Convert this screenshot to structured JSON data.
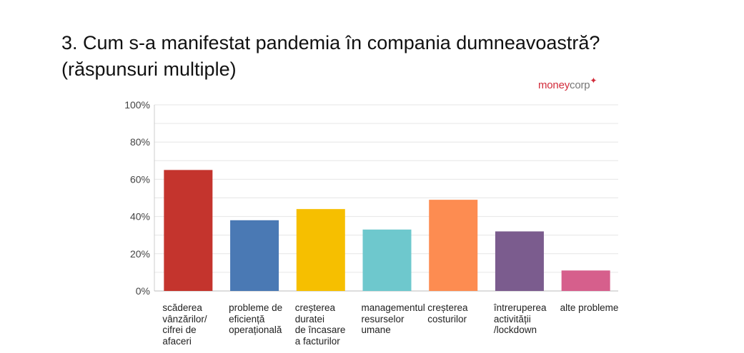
{
  "title_line1": "3. Cum s-a manifestat pandemia în compania dumneavoastră?",
  "title_line2": "(răspunsuri multiple)",
  "logo": {
    "money": "money",
    "corp": "corp",
    "mark": "✦"
  },
  "colors": {
    "grid": "#e6e6e6",
    "axis": "#cccccc",
    "tick_text": "#444444"
  },
  "chart_data": {
    "type": "bar",
    "categories": [
      "scăderea\nvânzărilor/\ncifrei de\nafaceri",
      "probleme de\neficiență\noperațională",
      "creșterea\nduratei\nde încasare\na facturilor",
      "managementul\nresurselor\numane",
      "creșterea\ncosturilor",
      "întreruperea\nactivității\n/lockdown",
      "alte probleme"
    ],
    "values": [
      65,
      38,
      44,
      33,
      49,
      32,
      11
    ],
    "bar_colors": [
      "#c4342d",
      "#4a79b4",
      "#f6bf00",
      "#6ec8cd",
      "#fd8c51",
      "#7b5c8e",
      "#d65f8c"
    ],
    "ylim": [
      0,
      100
    ],
    "yticks": [
      0,
      20,
      40,
      60,
      80,
      100
    ],
    "ytick_labels": [
      "0%",
      "20%",
      "40%",
      "60%",
      "80%",
      "100%"
    ],
    "grid": true,
    "title": "3. Cum s-a manifestat pandemia în compania dumneavoastră?",
    "xlabel": "",
    "ylabel": ""
  }
}
